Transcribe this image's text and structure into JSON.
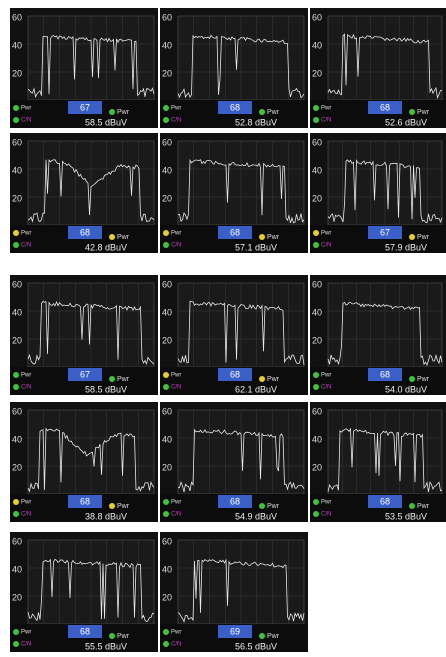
{
  "axis_labels": [
    "60",
    "40",
    "20"
  ],
  "pwr_label": "Pwr",
  "cn_label": "C/N",
  "panels": [
    {
      "channel": "67",
      "power": "58.5 dBuV",
      "dot_color": "#3cc43c"
    },
    {
      "channel": "68",
      "power": "52.8 dBuV",
      "dot_color": "#3cc43c"
    },
    {
      "channel": "68",
      "power": "52.6 dBuV",
      "dot_color": "#3cc43c"
    },
    {
      "channel": "68",
      "power": "42.8 dBuV",
      "dot_color": "#e8d020"
    },
    {
      "channel": "68",
      "power": "57.1 dBuV",
      "dot_color": "#e8d020"
    },
    {
      "channel": "67",
      "power": "57.9 dBuV",
      "dot_color": "#e8d020"
    },
    {
      "channel": "67",
      "power": "58.5 dBuV",
      "dot_color": "#3cc43c"
    },
    {
      "channel": "68",
      "power": "62.1 dBuV",
      "dot_color": "#e8d020"
    },
    {
      "channel": "68",
      "power": "54.0 dBuV",
      "dot_color": "#3cc43c"
    },
    {
      "channel": "68",
      "power": "38.8 dBuV",
      "dot_color": "#e8d020"
    },
    {
      "channel": "68",
      "power": "54.9 dBuV",
      "dot_color": "#3cc43c"
    },
    {
      "channel": "68",
      "power": "53.5 dBuV",
      "dot_color": "#3cc43c"
    },
    {
      "channel": "68",
      "power": "55.5 dBuV",
      "dot_color": "#3cc43c"
    },
    {
      "channel": "69",
      "power": "56.5 dBuV",
      "dot_color": "#3cc43c"
    }
  ]
}
